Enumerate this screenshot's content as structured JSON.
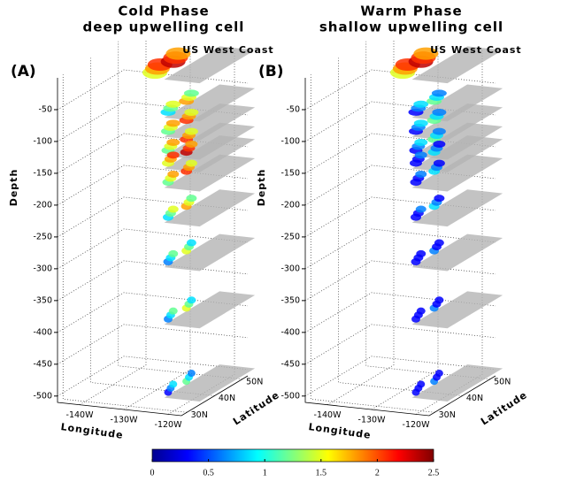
{
  "chart_data": [
    {
      "type": "3d-slices",
      "panel_label": "(A)",
      "title": "Cold Phase",
      "subtitle": "deep upwelling cell",
      "color": "#1f3fe0",
      "annotation": "US West Coast",
      "xlabel": "Longitude",
      "ylabel": "Latitude",
      "zlabel": "Depth",
      "xlim": [
        -145,
        -117
      ],
      "ylim": [
        28,
        52
      ],
      "zlim": [
        -510,
        0
      ],
      "xticks": [
        {
          "value": -140,
          "label": "-140W"
        },
        {
          "value": -130,
          "label": "-130W"
        },
        {
          "value": -120,
          "label": "-120W"
        }
      ],
      "yticks": [
        {
          "value": 30,
          "label": "30N"
        },
        {
          "value": 40,
          "label": "40N"
        },
        {
          "value": 50,
          "label": "50N"
        }
      ],
      "zticks": [
        -50,
        -100,
        -150,
        -200,
        -250,
        -300,
        -350,
        -400,
        -450,
        -500
      ],
      "slice_depths": [
        0,
        -60,
        -90,
        -120,
        -140,
        -170,
        -225,
        -295,
        -385,
        -500
      ]
    },
    {
      "type": "3d-slices",
      "panel_label": "(B)",
      "title": "Warm Phase",
      "subtitle": "shallow upwelling cell",
      "color": "#f03a1a",
      "annotation": "US West Coast",
      "xlabel": "Longitude",
      "ylabel": "Latitude",
      "zlabel": "Depth",
      "xlim": [
        -145,
        -117
      ],
      "ylim": [
        28,
        52
      ],
      "zlim": [
        -510,
        0
      ],
      "xticks": [
        {
          "value": -140,
          "label": "-140W"
        },
        {
          "value": -130,
          "label": "-130W"
        },
        {
          "value": -120,
          "label": "-120W"
        }
      ],
      "yticks": [
        {
          "value": 30,
          "label": "30N"
        },
        {
          "value": 40,
          "label": "40N"
        },
        {
          "value": 50,
          "label": "50N"
        }
      ],
      "zticks": [
        -50,
        -100,
        -150,
        -200,
        -250,
        -300,
        -350,
        -400,
        -450,
        -500
      ],
      "slice_depths": [
        0,
        -60,
        -90,
        -120,
        -140,
        -170,
        -225,
        -295,
        -385,
        -500
      ]
    }
  ],
  "colorbar": {
    "lim": [
      0,
      2.5
    ],
    "ticks": [
      0,
      0.5,
      1,
      1.5,
      2,
      2.5
    ]
  }
}
